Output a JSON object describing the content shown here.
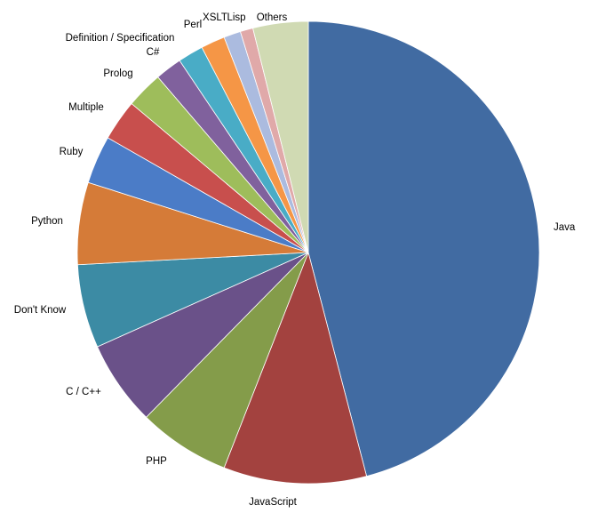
{
  "chart_data": {
    "type": "pie",
    "title": "",
    "legend": "none",
    "start_angle_deg": 0,
    "direction": "clockwise",
    "slices": [
      {
        "name": "Java",
        "value": 46.4,
        "color": "#416ba2"
      },
      {
        "name": "JavaScript",
        "value": 10.1,
        "color": "#a3423f"
      },
      {
        "name": "PHP",
        "value": 6.5,
        "color": "#849c4a"
      },
      {
        "name": "C / C++",
        "value": 6.0,
        "color": "#6a5189"
      },
      {
        "name": "Don't Know",
        "value": 5.9,
        "color": "#3c8ba4"
      },
      {
        "name": "Python",
        "value": 5.8,
        "color": "#d57b38"
      },
      {
        "name": "Ruby",
        "value": 3.4,
        "color": "#4b7cc7"
      },
      {
        "name": "Multiple",
        "value": 2.9,
        "color": "#c84f4d"
      },
      {
        "name": "Prolog",
        "value": 2.6,
        "color": "#9ebd5b"
      },
      {
        "name": "C#",
        "value": 1.9,
        "color": "#80619d"
      },
      {
        "name": "Definition / Specification",
        "value": 1.8,
        "color": "#49acc6"
      },
      {
        "name": "Perl",
        "value": 1.7,
        "color": "#f59646"
      },
      {
        "name": "XSLT",
        "value": 1.2,
        "color": "#abbbdf"
      },
      {
        "name": "Lisp",
        "value": 0.9,
        "color": "#e0a9a9"
      },
      {
        "name": "Others",
        "value": 3.9,
        "color": "#d0dab3"
      }
    ]
  }
}
